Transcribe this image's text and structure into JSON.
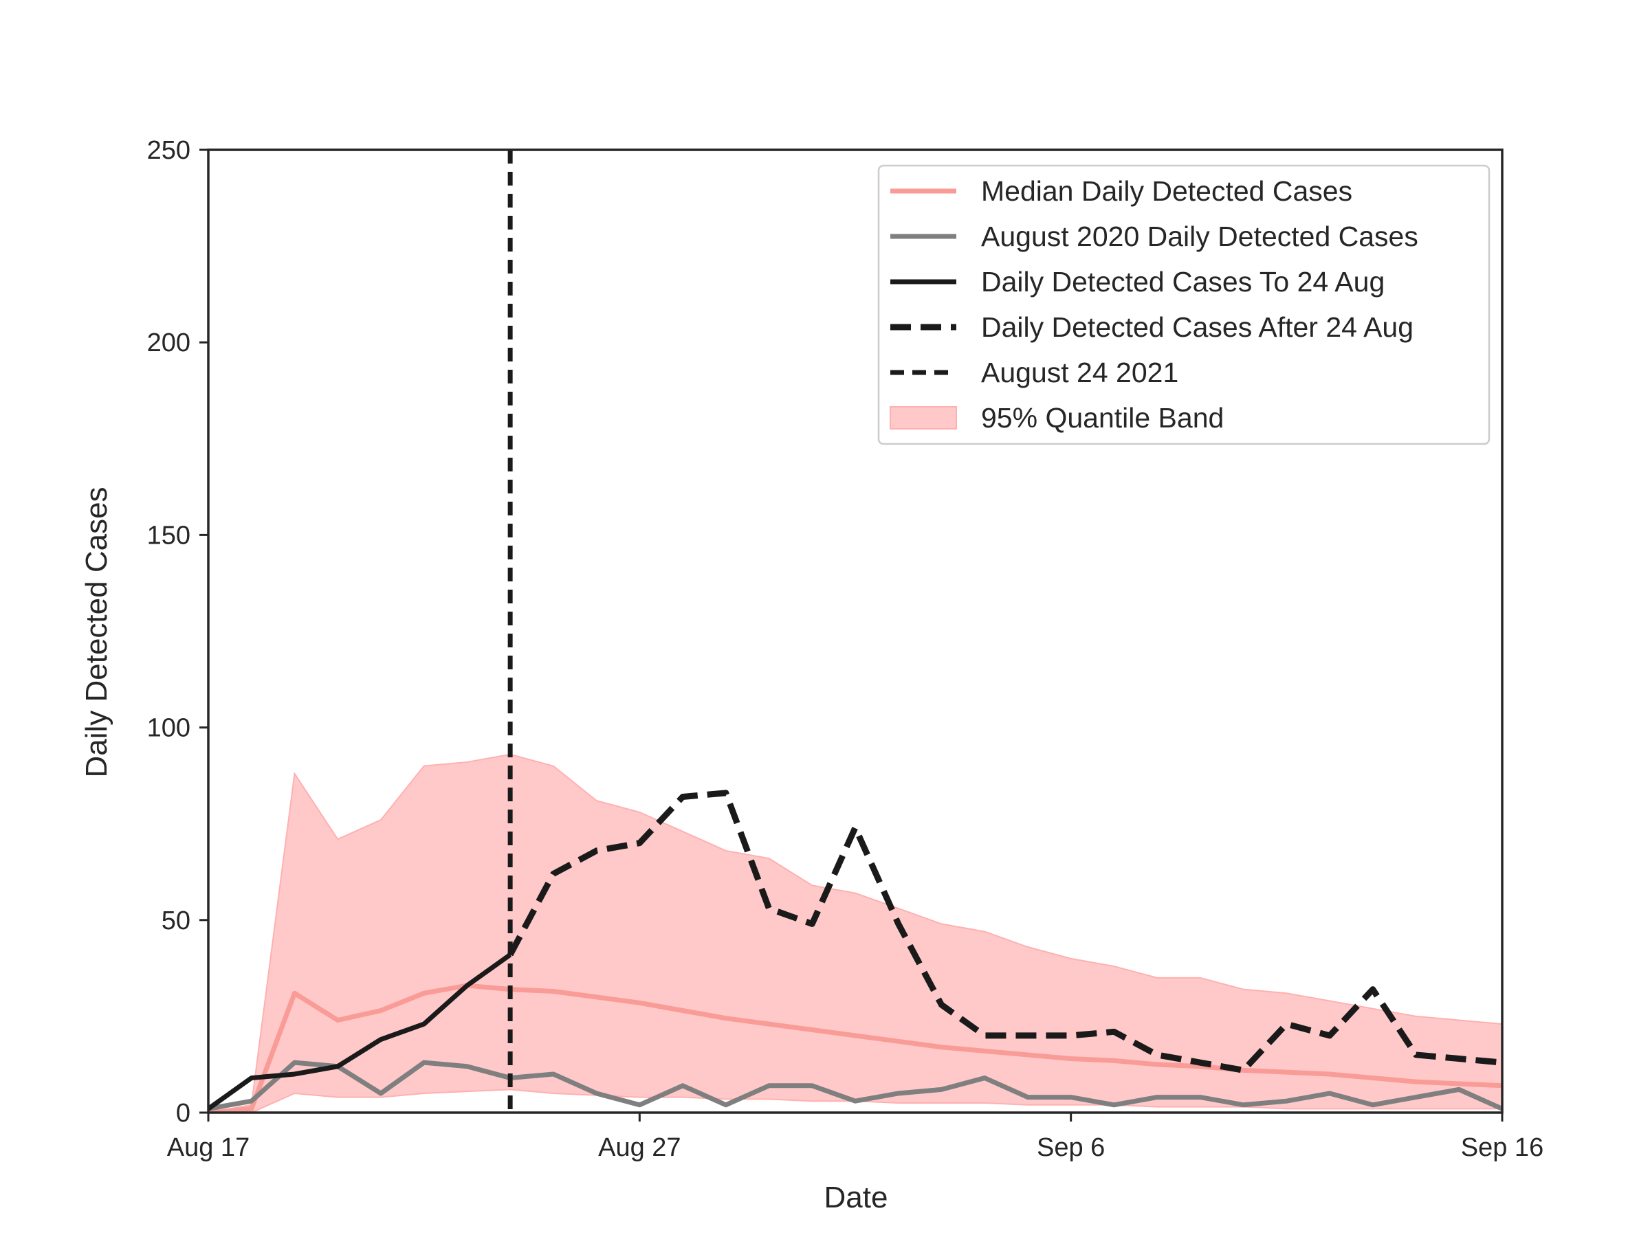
{
  "chart_data": {
    "type": "line",
    "xlabel": "Date",
    "ylabel": "Daily Detected Cases",
    "x_dates": [
      "2021-08-17",
      "2021-08-18",
      "2021-08-19",
      "2021-08-20",
      "2021-08-21",
      "2021-08-22",
      "2021-08-23",
      "2021-08-24",
      "2021-08-25",
      "2021-08-26",
      "2021-08-27",
      "2021-08-28",
      "2021-08-29",
      "2021-08-30",
      "2021-08-31",
      "2021-09-01",
      "2021-09-02",
      "2021-09-03",
      "2021-09-04",
      "2021-09-05",
      "2021-09-06",
      "2021-09-07",
      "2021-09-08",
      "2021-09-09",
      "2021-09-10",
      "2021-09-11",
      "2021-09-12",
      "2021-09-13",
      "2021-09-14",
      "2021-09-15",
      "2021-09-16"
    ],
    "xlim": [
      "2021-08-17",
      "2021-09-16"
    ],
    "ylim": [
      0,
      250
    ],
    "xticks": [
      "Aug 17",
      "Aug 27",
      "Sep 6",
      "Sep 16"
    ],
    "xtick_dates": [
      "2021-08-17",
      "2021-08-27",
      "2021-09-06",
      "2021-09-16"
    ],
    "yticks": [
      0,
      50,
      100,
      150,
      200,
      250
    ],
    "vline_date": "2021-08-24",
    "legend_position": "top-right",
    "band": {
      "name": "95% Quantile Band",
      "color": "#ffc9c9",
      "edge_color": "#ffb0b0",
      "upper": [
        0,
        2,
        88,
        71,
        76,
        90,
        91,
        93,
        90,
        81,
        78,
        73,
        68,
        66,
        59,
        57,
        53,
        49,
        47,
        43,
        40,
        38,
        35,
        35,
        32,
        31,
        29,
        27,
        25,
        24,
        23
      ],
      "lower": [
        0,
        0,
        5,
        4,
        4,
        5,
        5.5,
        6,
        5,
        4.5,
        4,
        4,
        3.5,
        3.5,
        3,
        3,
        2.5,
        2.5,
        2.5,
        2,
        2,
        2,
        1.5,
        1.5,
        1.5,
        1,
        1,
        1,
        1,
        1,
        1
      ]
    },
    "series": [
      {
        "name": "Median Daily Detected Cases",
        "color": "#f99b96",
        "style": "solid",
        "width": 7,
        "x_dates": [
          "2021-08-17",
          "2021-08-18",
          "2021-08-19",
          "2021-08-20",
          "2021-08-21",
          "2021-08-22",
          "2021-08-23",
          "2021-08-24",
          "2021-08-25",
          "2021-08-26",
          "2021-08-27",
          "2021-08-28",
          "2021-08-29",
          "2021-08-30",
          "2021-08-31",
          "2021-09-01",
          "2021-09-02",
          "2021-09-03",
          "2021-09-04",
          "2021-09-05",
          "2021-09-06",
          "2021-09-07",
          "2021-09-08",
          "2021-09-09",
          "2021-09-10",
          "2021-09-11",
          "2021-09-12",
          "2021-09-13",
          "2021-09-14",
          "2021-09-15",
          "2021-09-16"
        ],
        "values": [
          0,
          1,
          31,
          24,
          26.5,
          31,
          33,
          32,
          31.5,
          30,
          28.5,
          26.5,
          24.5,
          23,
          21.5,
          20,
          18.5,
          17,
          16,
          15,
          14,
          13.5,
          12.5,
          12,
          11,
          10.5,
          10,
          9,
          8,
          7.5,
          7
        ]
      },
      {
        "name": "August 2020 Daily Detected Cases",
        "color": "#7f7f7f",
        "style": "solid",
        "width": 7,
        "x_dates": [
          "2021-08-17",
          "2021-08-18",
          "2021-08-19",
          "2021-08-20",
          "2021-08-21",
          "2021-08-22",
          "2021-08-23",
          "2021-08-24",
          "2021-08-25",
          "2021-08-26",
          "2021-08-27",
          "2021-08-28",
          "2021-08-29",
          "2021-08-30",
          "2021-08-31",
          "2021-09-01",
          "2021-09-02",
          "2021-09-03",
          "2021-09-04",
          "2021-09-05",
          "2021-09-06",
          "2021-09-07",
          "2021-09-08",
          "2021-09-09",
          "2021-09-10",
          "2021-09-11",
          "2021-09-12",
          "2021-09-13",
          "2021-09-14",
          "2021-09-15",
          "2021-09-16"
        ],
        "values": [
          1,
          3,
          13,
          12,
          5,
          13,
          12,
          9,
          10,
          5,
          2,
          7,
          2,
          7,
          7,
          3,
          5,
          6,
          9,
          4,
          4,
          2,
          4,
          4,
          2,
          3,
          5,
          2,
          4,
          6,
          1
        ]
      },
      {
        "name": "Daily Detected Cases To 24 Aug",
        "color": "#1a1a1a",
        "style": "solid",
        "width": 7,
        "x_dates": [
          "2021-08-17",
          "2021-08-18",
          "2021-08-19",
          "2021-08-20",
          "2021-08-21",
          "2021-08-22",
          "2021-08-23",
          "2021-08-24"
        ],
        "values": [
          1,
          9,
          10,
          12,
          19,
          23,
          33,
          41
        ]
      },
      {
        "name": "Daily Detected Cases After 24 Aug",
        "color": "#1a1a1a",
        "style": "dashed",
        "width": 9,
        "x_dates": [
          "2021-08-24",
          "2021-08-25",
          "2021-08-26",
          "2021-08-27",
          "2021-08-28",
          "2021-08-29",
          "2021-08-30",
          "2021-08-31",
          "2021-09-01",
          "2021-09-02",
          "2021-09-03",
          "2021-09-04",
          "2021-09-05",
          "2021-09-06",
          "2021-09-07",
          "2021-09-08",
          "2021-09-09",
          "2021-09-10",
          "2021-09-11",
          "2021-09-12",
          "2021-09-13",
          "2021-09-14",
          "2021-09-15",
          "2021-09-16"
        ],
        "values": [
          41,
          62,
          68,
          70,
          82,
          83,
          53,
          49,
          74,
          49,
          28,
          20,
          20,
          20,
          21,
          15,
          13,
          11,
          23,
          20,
          32,
          15,
          14,
          13
        ]
      }
    ],
    "legend": [
      {
        "label": "Median Daily Detected Cases",
        "kind": "line",
        "color": "#f99b96",
        "dash": "none"
      },
      {
        "label": "August 2020 Daily Detected Cases",
        "kind": "line",
        "color": "#7f7f7f",
        "dash": "none"
      },
      {
        "label": "Daily Detected Cases To 24 Aug",
        "kind": "line",
        "color": "#1a1a1a",
        "dash": "none"
      },
      {
        "label": "Daily Detected Cases After 24 Aug",
        "kind": "line",
        "color": "#1a1a1a",
        "dash": "long"
      },
      {
        "label": "August 24 2021",
        "kind": "line",
        "color": "#1a1a1a",
        "dash": "short"
      },
      {
        "label": "95% Quantile Band",
        "kind": "patch",
        "color": "#ffc9c9",
        "dash": "none"
      }
    ]
  }
}
